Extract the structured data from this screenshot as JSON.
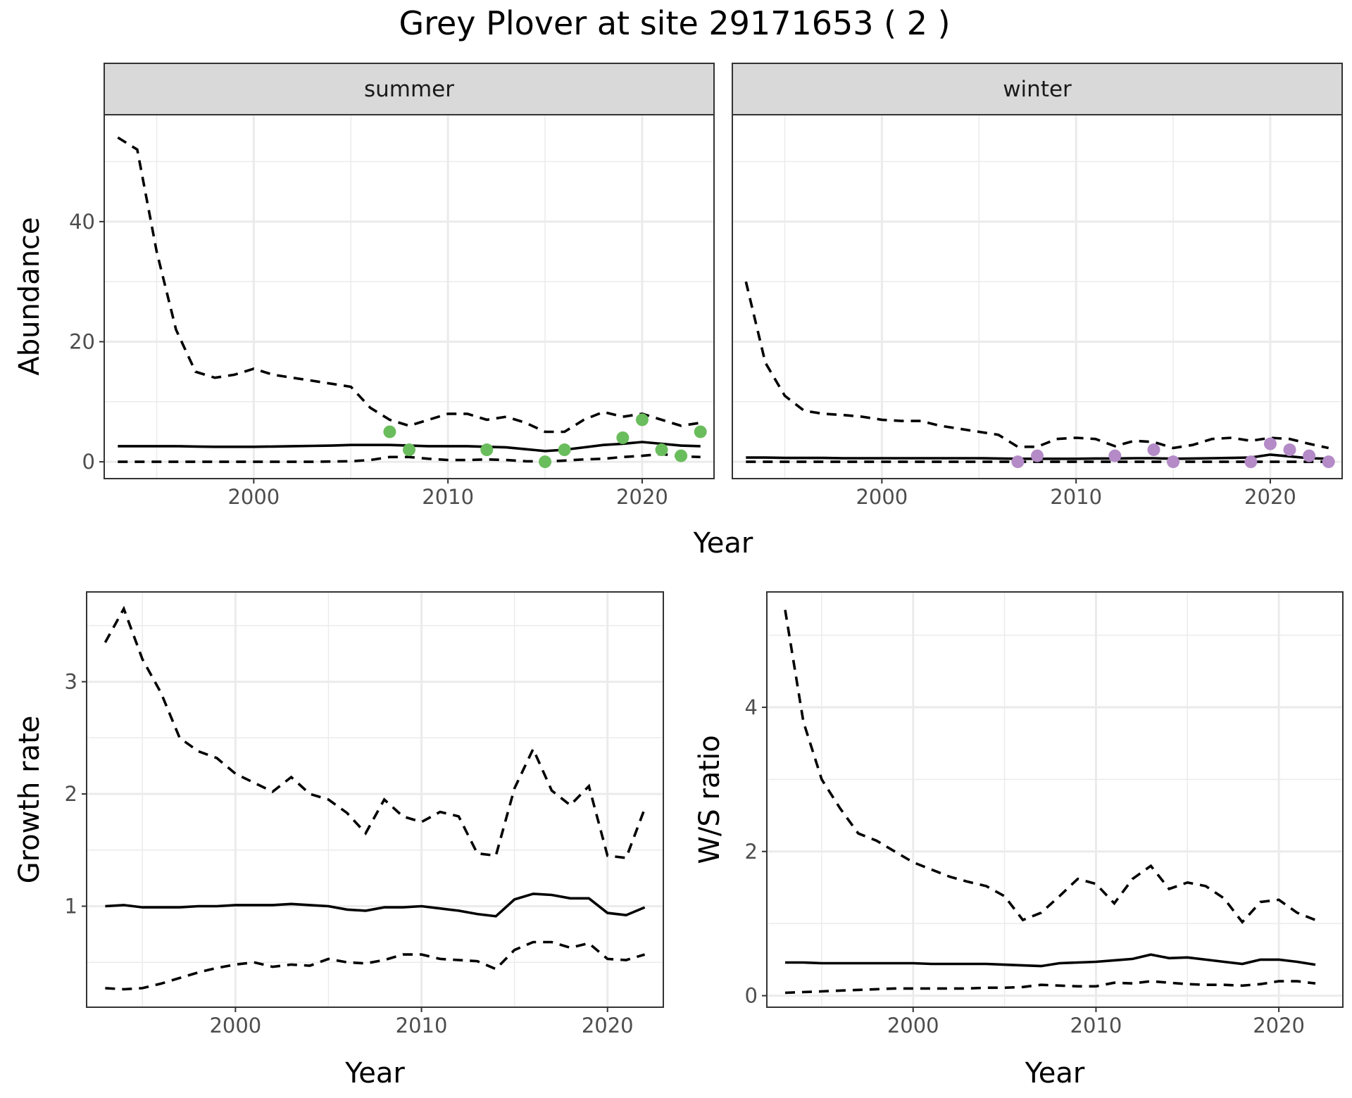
{
  "title": "Grey Plover at site 29171653 ( 2 )",
  "colors": {
    "summer_points": "#6abd5c",
    "winter_points": "#b48ac7",
    "lines": "#000000"
  },
  "chart_data": [
    {
      "id": "abundance",
      "type": "line",
      "facets": [
        "summer",
        "winter"
      ],
      "xlabel": "Year",
      "ylabel": "Abundance",
      "xlim": [
        1992.3,
        2023.7
      ],
      "ylim": [
        -2.8,
        57.8
      ],
      "xticks": [
        2000,
        2010,
        2020
      ],
      "yticks": [
        0,
        20,
        40
      ],
      "grid": true,
      "panels": [
        {
          "label": "summer",
          "x": [
            1993,
            1994,
            1995,
            1996,
            1997,
            1998,
            1999,
            2000,
            2001,
            2002,
            2003,
            2004,
            2005,
            2006,
            2007,
            2008,
            2009,
            2010,
            2011,
            2012,
            2013,
            2014,
            2015,
            2016,
            2017,
            2018,
            2019,
            2020,
            2021,
            2022,
            2023
          ],
          "mean": [
            2.6,
            2.6,
            2.6,
            2.6,
            2.55,
            2.5,
            2.5,
            2.5,
            2.55,
            2.6,
            2.65,
            2.7,
            2.8,
            2.8,
            2.8,
            2.7,
            2.6,
            2.6,
            2.6,
            2.5,
            2.4,
            2.1,
            1.8,
            2.0,
            2.4,
            2.8,
            3.0,
            3.3,
            3.0,
            2.7,
            2.6
          ],
          "lower": [
            0.0,
            0.0,
            0.0,
            0.0,
            0.0,
            0.0,
            0.0,
            0.0,
            0.0,
            0.0,
            0.0,
            0.05,
            0.1,
            0.3,
            0.8,
            0.8,
            0.5,
            0.3,
            0.3,
            0.4,
            0.3,
            0.1,
            0.05,
            0.2,
            0.4,
            0.5,
            0.8,
            1.0,
            1.3,
            0.9,
            0.8
          ],
          "upper": [
            54.0,
            52.0,
            35.0,
            22.0,
            15.0,
            14.0,
            14.5,
            15.5,
            14.5,
            14.0,
            13.5,
            13.0,
            12.5,
            9.0,
            7.0,
            6.0,
            7.0,
            8.0,
            8.0,
            7.0,
            7.5,
            6.5,
            5.0,
            5.0,
            7.0,
            8.3,
            7.5,
            8.0,
            7.0,
            6.0,
            6.5
          ],
          "points": {
            "x": [
              2007,
              2008,
              2012,
              2015,
              2016,
              2019,
              2020,
              2021,
              2022,
              2023
            ],
            "y": [
              5,
              2,
              2,
              0,
              2,
              4,
              7,
              2,
              1,
              5
            ]
          }
        },
        {
          "label": "winter",
          "x": [
            1993,
            1994,
            1995,
            1996,
            1997,
            1998,
            1999,
            2000,
            2001,
            2002,
            2003,
            2004,
            2005,
            2006,
            2007,
            2008,
            2009,
            2010,
            2011,
            2012,
            2013,
            2014,
            2015,
            2016,
            2017,
            2018,
            2019,
            2020,
            2021,
            2022,
            2023
          ],
          "mean": [
            0.7,
            0.7,
            0.65,
            0.65,
            0.65,
            0.6,
            0.6,
            0.6,
            0.6,
            0.6,
            0.6,
            0.6,
            0.6,
            0.55,
            0.5,
            0.5,
            0.5,
            0.5,
            0.55,
            0.55,
            0.6,
            0.6,
            0.5,
            0.55,
            0.6,
            0.65,
            0.7,
            1.2,
            0.9,
            0.6,
            0.5
          ],
          "lower": [
            0.0,
            0.0,
            0.0,
            0.0,
            0.0,
            0.0,
            0.0,
            0.0,
            0.0,
            0.0,
            0.0,
            0.0,
            0.0,
            0.0,
            0.0,
            0.0,
            0.0,
            0.0,
            0.0,
            0.0,
            0.0,
            0.0,
            0.0,
            0.0,
            0.0,
            0.0,
            0.0,
            0.0,
            0.0,
            0.0,
            0.0
          ],
          "upper": [
            30.0,
            16.5,
            11.0,
            8.5,
            8.0,
            7.8,
            7.5,
            7.0,
            6.8,
            6.8,
            6.0,
            5.5,
            5.0,
            4.5,
            2.5,
            2.5,
            3.8,
            4.0,
            3.8,
            2.6,
            3.5,
            3.3,
            2.3,
            2.8,
            3.8,
            4.0,
            3.5,
            4.0,
            3.8,
            3.0,
            2.3
          ],
          "points": {
            "x": [
              2007,
              2008,
              2012,
              2014,
              2015,
              2019,
              2020,
              2021,
              2022,
              2023
            ],
            "y": [
              0,
              1,
              1,
              2,
              0,
              0,
              3,
              2,
              1,
              0
            ]
          }
        }
      ]
    },
    {
      "id": "growth",
      "type": "line",
      "xlabel": "Year",
      "ylabel": "Growth rate",
      "xlim": [
        1992.0,
        2023.0
      ],
      "ylim": [
        0.1,
        3.8
      ],
      "xticks": [
        2000,
        2010,
        2020
      ],
      "yticks": [
        1,
        2,
        3
      ],
      "grid": true,
      "x": [
        1993,
        1994,
        1995,
        1996,
        1997,
        1998,
        1999,
        2000,
        2001,
        2002,
        2003,
        2004,
        2005,
        2006,
        2007,
        2008,
        2009,
        2010,
        2011,
        2012,
        2013,
        2014,
        2015,
        2016,
        2017,
        2018,
        2019,
        2020,
        2021,
        2022
      ],
      "mean": [
        1.0,
        1.01,
        0.99,
        0.99,
        0.99,
        1.0,
        1.0,
        1.01,
        1.01,
        1.01,
        1.02,
        1.01,
        1.0,
        0.97,
        0.96,
        0.99,
        0.99,
        1.0,
        0.98,
        0.96,
        0.93,
        0.91,
        1.06,
        1.11,
        1.1,
        1.07,
        1.07,
        0.94,
        0.92,
        0.99
      ],
      "lower": [
        0.27,
        0.26,
        0.27,
        0.31,
        0.36,
        0.41,
        0.45,
        0.48,
        0.5,
        0.46,
        0.48,
        0.47,
        0.53,
        0.5,
        0.49,
        0.52,
        0.57,
        0.57,
        0.53,
        0.52,
        0.51,
        0.44,
        0.61,
        0.68,
        0.68,
        0.63,
        0.67,
        0.53,
        0.52,
        0.57
      ],
      "upper": [
        3.35,
        3.65,
        3.2,
        2.9,
        2.5,
        2.38,
        2.32,
        2.18,
        2.1,
        2.02,
        2.15,
        2.0,
        1.95,
        1.83,
        1.65,
        1.95,
        1.8,
        1.75,
        1.84,
        1.8,
        1.47,
        1.45,
        2.05,
        2.4,
        2.03,
        1.9,
        2.07,
        1.45,
        1.43,
        1.87
      ]
    },
    {
      "id": "ratio",
      "type": "line",
      "xlabel": "Year",
      "ylabel": "W/S ratio",
      "xlim": [
        1992.0,
        2023.5
      ],
      "ylim": [
        -0.16,
        5.6
      ],
      "xticks": [
        2000,
        2010,
        2020
      ],
      "yticks": [
        0,
        2,
        4
      ],
      "grid": true,
      "x": [
        1993,
        1994,
        1995,
        1996,
        1997,
        1998,
        1999,
        2000,
        2001,
        2002,
        2003,
        2004,
        2005,
        2006,
        2007,
        2008,
        2009,
        2010,
        2011,
        2012,
        2013,
        2014,
        2015,
        2016,
        2017,
        2018,
        2019,
        2020,
        2021,
        2022
      ],
      "mean": [
        0.46,
        0.46,
        0.45,
        0.45,
        0.45,
        0.45,
        0.45,
        0.45,
        0.44,
        0.44,
        0.44,
        0.44,
        0.43,
        0.42,
        0.41,
        0.45,
        0.46,
        0.47,
        0.49,
        0.51,
        0.57,
        0.52,
        0.53,
        0.5,
        0.47,
        0.44,
        0.5,
        0.5,
        0.47,
        0.43
      ],
      "lower": [
        0.04,
        0.05,
        0.06,
        0.07,
        0.08,
        0.09,
        0.1,
        0.1,
        0.1,
        0.1,
        0.1,
        0.11,
        0.11,
        0.12,
        0.15,
        0.14,
        0.13,
        0.13,
        0.18,
        0.17,
        0.2,
        0.18,
        0.16,
        0.15,
        0.15,
        0.14,
        0.16,
        0.2,
        0.2,
        0.17
      ],
      "upper": [
        5.35,
        3.8,
        3.0,
        2.6,
        2.25,
        2.15,
        2.0,
        1.85,
        1.75,
        1.65,
        1.58,
        1.52,
        1.38,
        1.05,
        1.15,
        1.38,
        1.62,
        1.55,
        1.28,
        1.62,
        1.8,
        1.48,
        1.57,
        1.52,
        1.35,
        1.02,
        1.3,
        1.33,
        1.15,
        1.05
      ]
    }
  ]
}
